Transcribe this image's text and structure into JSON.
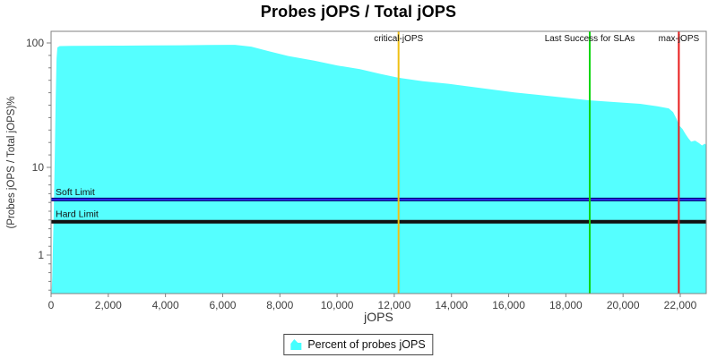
{
  "chart_data": {
    "type": "area",
    "title": "Probes jOPS / Total jOPS",
    "xlabel": "jOPS",
    "ylabel": "(Probes jOPS / Total jOPS)%",
    "x_ticks": [
      0,
      2000,
      4000,
      6000,
      8000,
      10000,
      12000,
      14000,
      16000,
      18000,
      20000,
      22000
    ],
    "y_ticks": [
      1,
      10,
      100
    ],
    "xlim": [
      0,
      22900
    ],
    "ylim": [
      0.37,
      110
    ],
    "y_scale": "log",
    "grid": "off",
    "series": [
      {
        "name": "Percent of probes jOPS",
        "color": "#55FFFF",
        "points": [
          [
            20,
            0.37
          ],
          [
            40,
            0.55
          ],
          [
            70,
            1.4
          ],
          [
            100,
            4
          ],
          [
            130,
            12
          ],
          [
            160,
            35
          ],
          [
            190,
            75
          ],
          [
            220,
            92
          ],
          [
            300,
            94.3
          ],
          [
            700,
            94.8
          ],
          [
            1500,
            95
          ],
          [
            2500,
            95.2
          ],
          [
            3500,
            95.5
          ],
          [
            4500,
            95.8
          ],
          [
            5500,
            96.2
          ],
          [
            6430,
            96.6
          ],
          [
            7000,
            93.5
          ],
          [
            7600,
            86
          ],
          [
            8300,
            78.5
          ],
          [
            9200,
            72
          ],
          [
            10000,
            66
          ],
          [
            10800,
            61.5
          ],
          [
            11500,
            56.5
          ],
          [
            12150,
            52.5
          ],
          [
            13000,
            49.2
          ],
          [
            13900,
            47
          ],
          [
            15000,
            43.5
          ],
          [
            16200,
            40
          ],
          [
            17000,
            38.3
          ],
          [
            18000,
            36.2
          ],
          [
            18835,
            34.6
          ],
          [
            19800,
            33.4
          ],
          [
            20600,
            32.4
          ],
          [
            21200,
            31
          ],
          [
            21600,
            29.8
          ],
          [
            21750,
            27.8
          ],
          [
            21870,
            24.5
          ],
          [
            21960,
            21.8
          ],
          [
            22080,
            20.3
          ],
          [
            22180,
            18.6
          ],
          [
            22280,
            17.2
          ],
          [
            22380,
            16.1
          ],
          [
            22520,
            16.4
          ],
          [
            22650,
            15.7
          ],
          [
            22760,
            15.0
          ],
          [
            22860,
            15.5
          ],
          [
            22900,
            15.2
          ]
        ]
      }
    ],
    "vlines": [
      {
        "label": "critical-jOPS",
        "x": 12150,
        "color": "#F0C014"
      },
      {
        "label": "Last Success for SLAs",
        "x": 18835,
        "color": "#0FD60F"
      },
      {
        "label": "max-jOPS",
        "x": 21950,
        "color": "#E81A1A"
      }
    ],
    "hlines": [
      {
        "label": "Soft Limit",
        "y": 4.3,
        "color": "#2A2AEE",
        "edge": "#000066"
      },
      {
        "label": "Hard Limit",
        "y": 2.4,
        "color": "#111111",
        "edge": "#111111"
      }
    ],
    "legend": {
      "label": "Percent of probes jOPS",
      "swatch_color": "#44FFFF",
      "position": "bottom-center"
    }
  },
  "colors": {
    "background": "#FFFFFF",
    "plot_border": "#808080",
    "tick": "#808080",
    "tick_label": "#404040",
    "axis_label": "#333333",
    "annotation_label": "#111111",
    "title": "#000000"
  }
}
